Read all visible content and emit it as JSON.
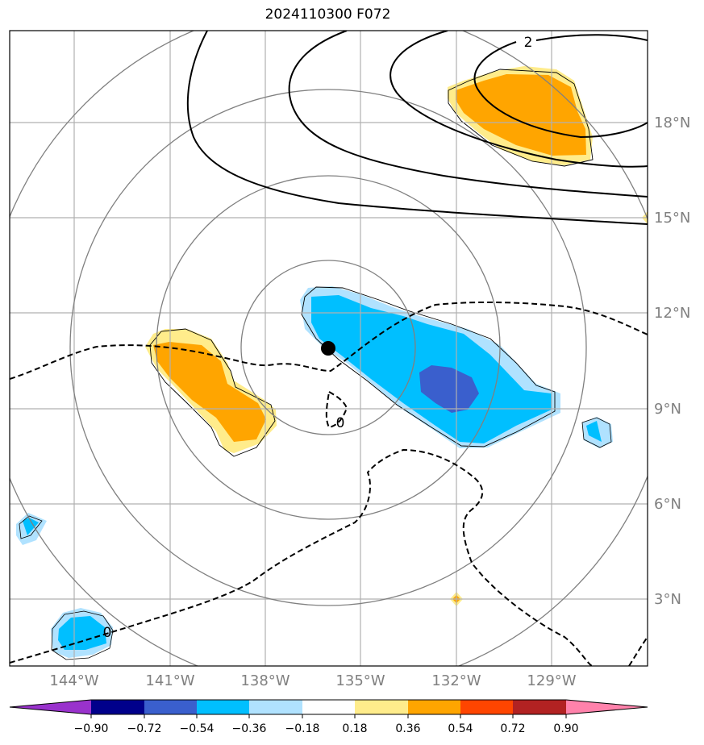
{
  "title": "2024110300 F072",
  "lon_ticks": [
    "144°W",
    "141°W",
    "138°W",
    "135°W",
    "132°W",
    "129°W"
  ],
  "lat_ticks": [
    "3°N",
    "6°N",
    "9°N",
    "12°N",
    "15°N",
    "18°N"
  ],
  "contour_labels": {
    "positive": "2",
    "zero_a": "0",
    "zero_b": "0"
  },
  "colorbar": {
    "ticks": [
      "−0.90",
      "−0.72",
      "−0.54",
      "−0.36",
      "−0.18",
      "0.18",
      "0.36",
      "0.54",
      "0.72",
      "0.90"
    ],
    "colors": [
      "#9932cc",
      "#00008b",
      "#3a5fcd",
      "#00bfff",
      "#b0e2ff",
      "#ffffff",
      "#ffec8b",
      "#ffa500",
      "#ff4500",
      "#b22222",
      "#ff82ab"
    ]
  },
  "map": {
    "storm_center": {
      "lon": "-136.0",
      "lat": "10.9"
    },
    "colors": {
      "grid": "#b0b0b0",
      "rings": "#808080",
      "tick_text": "#808080"
    }
  }
}
